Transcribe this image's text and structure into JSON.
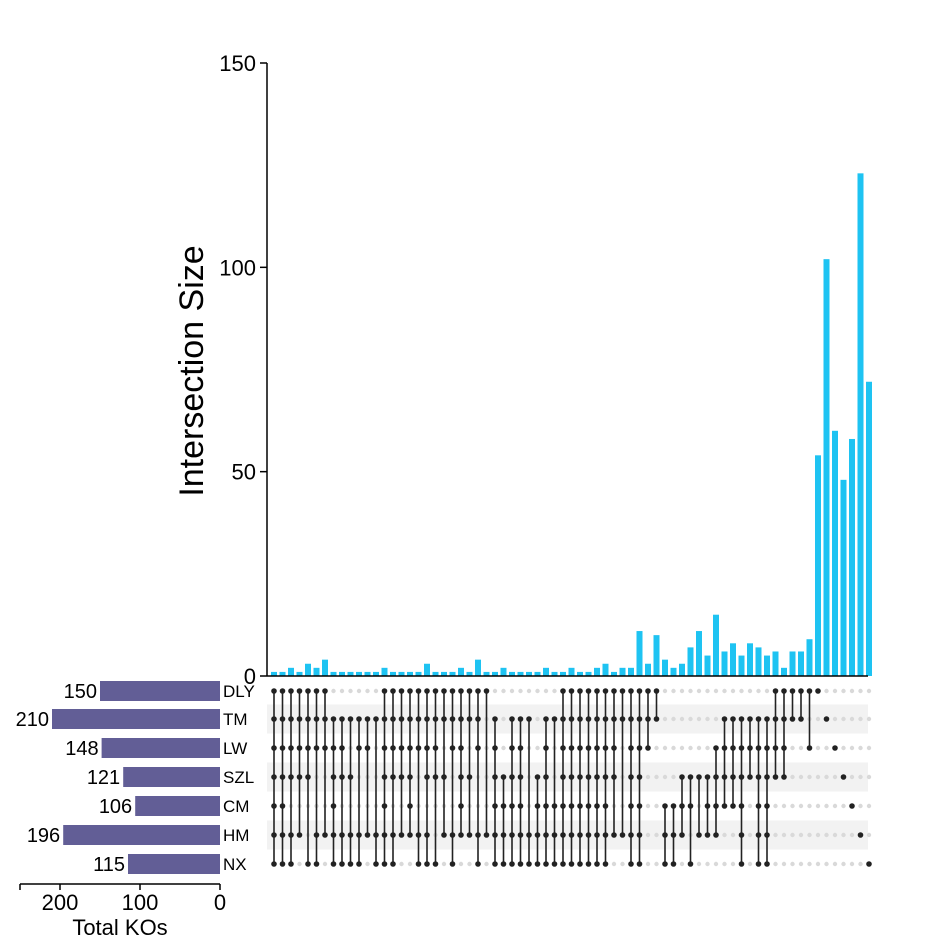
{
  "chart_data": {
    "type": "upset",
    "ylabel": "Intersection Size",
    "ylim": [
      0,
      150
    ],
    "yticks": [
      "0",
      "50",
      "100",
      "150"
    ],
    "sets": [
      {
        "name": "DLY",
        "size": 150
      },
      {
        "name": "TM",
        "size": 210
      },
      {
        "name": "LW",
        "size": 148
      },
      {
        "name": "SZL",
        "size": 121
      },
      {
        "name": "CM",
        "size": 106
      },
      {
        "name": "HM",
        "size": 196
      },
      {
        "name": "NX",
        "size": 115
      }
    ],
    "set_size_axis": {
      "label": "Total KOs",
      "ticks": [
        "200",
        "100",
        "0"
      ],
      "max": 250
    },
    "intersection_values": [
      1,
      1,
      2,
      1,
      3,
      2,
      4,
      1,
      1,
      1,
      1,
      1,
      1,
      2,
      1,
      1,
      1,
      1,
      3,
      1,
      1,
      1,
      2,
      1,
      4,
      1,
      1,
      2,
      1,
      1,
      1,
      1,
      2,
      1,
      1,
      2,
      1,
      1,
      2,
      3,
      1,
      2,
      2,
      11,
      3,
      10,
      4,
      2,
      3,
      7,
      11,
      5,
      15,
      6,
      8,
      5,
      8,
      7,
      5,
      6,
      2,
      6,
      6,
      9,
      54,
      102,
      60,
      48,
      58,
      123,
      72
    ],
    "intersection_sets": [
      [
        0,
        1,
        2,
        3,
        4,
        5,
        6
      ],
      [
        0,
        1,
        2,
        3,
        4,
        5,
        6
      ],
      [
        0,
        1,
        2,
        3,
        5,
        6
      ],
      [
        0,
        1,
        2,
        3,
        5
      ],
      [
        0,
        1,
        2,
        3,
        6
      ],
      [
        0,
        1,
        2,
        5,
        6
      ],
      [
        0,
        1,
        2,
        5
      ],
      [
        1,
        2,
        3,
        4,
        5,
        6
      ],
      [
        1,
        2,
        3,
        5,
        6
      ],
      [
        1,
        3,
        5,
        6
      ],
      [
        1,
        2,
        5,
        6
      ],
      [
        1,
        2,
        5
      ],
      [
        1,
        5,
        6
      ],
      [
        0,
        1,
        2,
        3,
        4,
        5,
        6
      ],
      [
        0,
        1,
        2,
        3,
        5,
        6
      ],
      [
        0,
        1,
        2,
        3,
        5
      ],
      [
        0,
        1,
        2,
        3,
        4,
        5
      ],
      [
        0,
        1,
        2,
        5,
        6
      ],
      [
        0,
        1,
        2,
        3,
        5,
        6
      ],
      [
        0,
        1,
        2,
        3,
        6
      ],
      [
        0,
        1,
        3,
        5
      ],
      [
        0,
        1,
        2,
        5,
        6
      ],
      [
        0,
        1,
        2,
        3,
        4,
        5
      ],
      [
        0,
        1,
        3,
        5
      ],
      [
        0,
        1,
        2,
        5,
        6
      ],
      [
        0,
        5
      ],
      [
        1,
        2,
        3,
        4,
        5,
        6
      ],
      [
        3,
        4,
        5,
        6
      ],
      [
        1,
        2,
        3,
        4,
        5,
        6
      ],
      [
        1,
        2,
        3,
        4,
        5,
        6
      ],
      [
        1,
        5,
        6
      ],
      [
        3,
        4,
        5,
        6
      ],
      [
        1,
        2,
        3,
        4,
        5,
        6
      ],
      [
        1,
        4,
        5,
        6
      ],
      [
        0,
        1,
        2,
        3,
        4,
        5,
        6
      ],
      [
        0,
        1,
        2,
        3,
        4,
        5,
        6
      ],
      [
        0,
        1,
        2,
        3,
        4,
        5,
        6
      ],
      [
        0,
        1,
        2,
        3,
        4,
        5,
        6
      ],
      [
        0,
        1,
        2,
        3,
        4,
        5,
        6
      ],
      [
        0,
        1,
        2,
        3,
        4,
        5,
        6
      ],
      [
        0,
        1,
        2,
        3,
        5
      ],
      [
        0,
        1,
        5
      ],
      [
        0,
        1,
        2,
        3,
        4,
        5,
        6
      ],
      [
        0,
        1,
        2,
        3,
        4,
        5,
        6
      ],
      [
        0,
        1,
        2
      ],
      [
        0,
        1
      ],
      [
        4,
        5,
        6
      ],
      [
        4,
        5,
        6
      ],
      [
        3,
        4,
        5
      ],
      [
        3,
        4,
        6
      ],
      [
        3,
        5
      ],
      [
        3,
        4,
        5
      ],
      [
        2,
        3,
        4,
        5
      ],
      [
        1,
        2,
        3,
        4
      ],
      [
        1,
        2,
        3,
        4
      ],
      [
        1,
        2,
        3,
        4,
        5,
        6
      ],
      [
        1,
        2,
        3
      ],
      [
        1,
        2,
        3,
        4,
        5,
        6
      ],
      [
        1,
        2,
        3,
        4,
        5,
        6
      ],
      [
        0,
        1,
        2,
        3
      ],
      [
        0,
        1,
        2,
        3
      ],
      [
        0,
        1
      ],
      [
        0,
        1
      ],
      [
        0,
        2
      ],
      [
        0
      ],
      [
        1
      ],
      [
        2
      ],
      [
        3
      ],
      [
        4
      ],
      [
        5
      ],
      [
        6
      ]
    ]
  }
}
